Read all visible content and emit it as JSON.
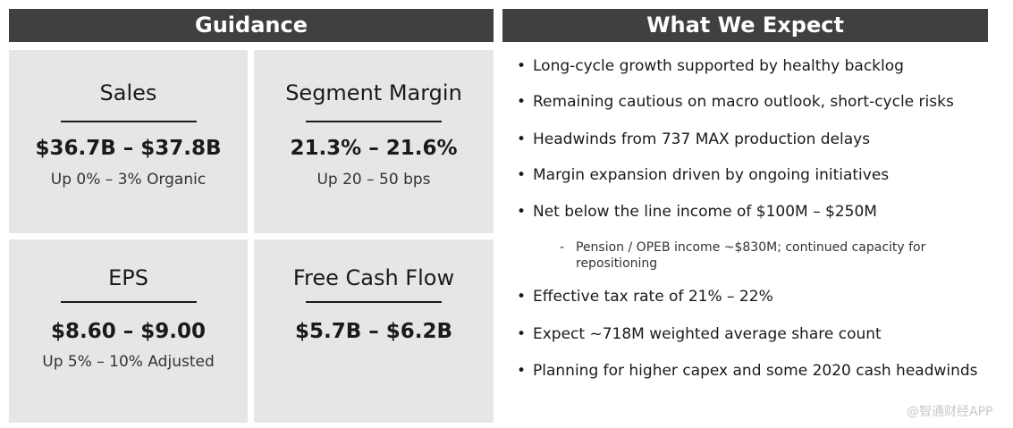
{
  "guidance": {
    "title": "Guidance",
    "boxes": [
      {
        "title": "Sales",
        "value": "$36.7B – $37.8B",
        "note": "Up 0% – 3% Organic"
      },
      {
        "title": "Segment Margin",
        "value": "21.3% – 21.6%",
        "note": "Up 20 – 50 bps"
      },
      {
        "title": "EPS",
        "value": "$8.60 – $9.00",
        "note": "Up 5% – 10% Adjusted"
      },
      {
        "title": "Free Cash Flow",
        "value": "$5.7B – $6.2B"
      }
    ]
  },
  "expect": {
    "title": "What We Expect",
    "bullets": [
      "Long-cycle growth supported by healthy backlog",
      "Remaining cautious on macro outlook, short-cycle risks",
      "Headwinds from 737 MAX production delays",
      "Margin expansion driven by ongoing initiatives",
      "Net below the line income of $100M – $250M",
      "Effective tax rate of 21% – 22%",
      "Expect ~718M weighted average share count",
      "Planning for higher capex and some 2020 cash headwinds"
    ],
    "sub_bullet": "Pension / OPEB income ~$830M; continued capacity for repositioning"
  },
  "watermark": "@智通财经APP"
}
